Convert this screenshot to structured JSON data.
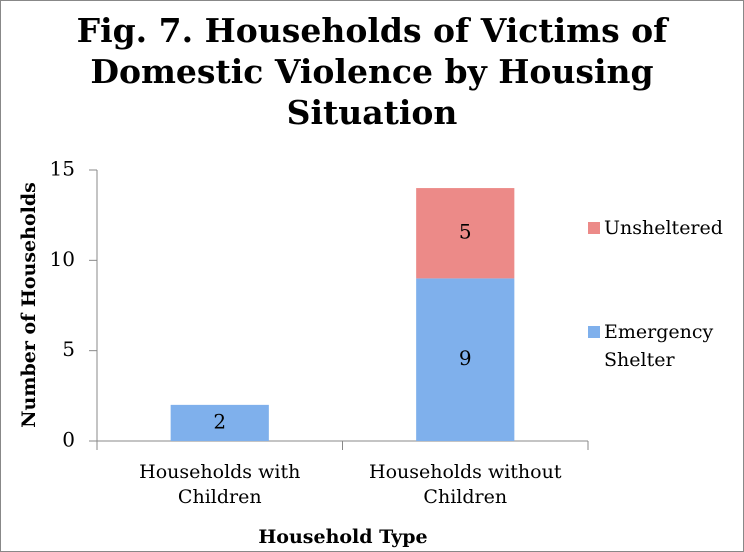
{
  "chart_data": {
    "type": "stacked_bar",
    "title": "Fig. 7. Households of Victims of Domestic Violence by Housing Situation",
    "categories": [
      "Households with Children",
      "Households without Children"
    ],
    "series": [
      {
        "name": "Emergency Shelter",
        "color": "#7fb0ec",
        "values": [
          2,
          9
        ]
      },
      {
        "name": "Unsheltered",
        "color": "#ec8a88",
        "values": [
          null,
          5
        ]
      }
    ],
    "ylim": [
      0,
      15
    ],
    "yticks": [
      0,
      5,
      10,
      15
    ],
    "x_label": "Household Type",
    "y_label": "Number of Households",
    "legend": "right"
  }
}
